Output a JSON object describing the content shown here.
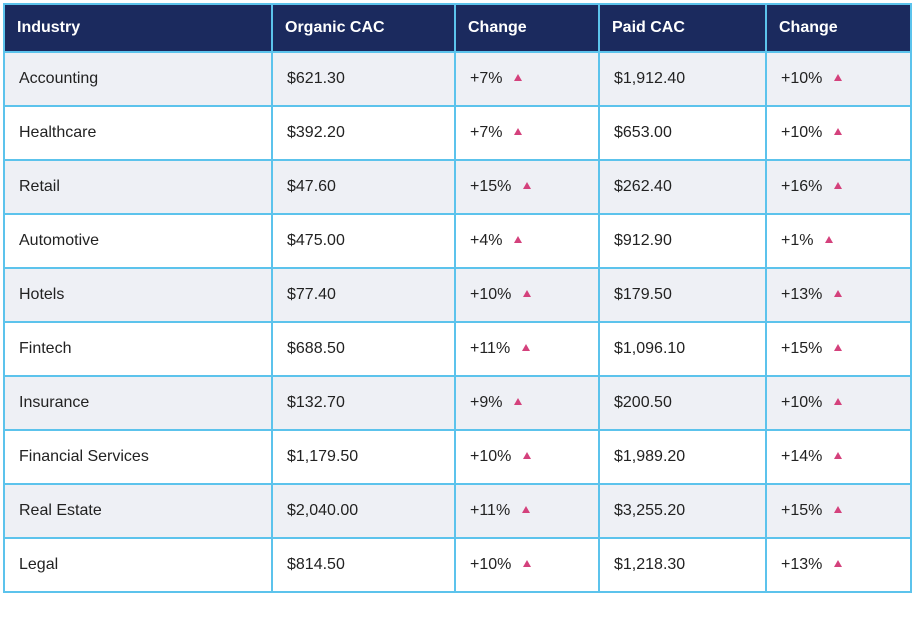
{
  "table": {
    "header": [
      "Industry",
      "Organic CAC",
      "Change",
      "Paid CAC",
      "Change"
    ],
    "rows": [
      [
        "Accounting",
        "$621.30",
        "+7%",
        "$1,912.40",
        "+10%"
      ],
      [
        "Healthcare",
        "$392.20",
        "+7%",
        "$653.00",
        "+10%"
      ],
      [
        "Retail",
        "$47.60",
        "+15%",
        "$262.40",
        "+16%"
      ],
      [
        "Automotive",
        "$475.00",
        "+4%",
        "$912.90",
        "+1%"
      ],
      [
        "Hotels",
        "$77.40",
        "+10%",
        "$179.50",
        "+13%"
      ],
      [
        "Fintech",
        "$688.50",
        "+11%",
        "$1,096.10",
        "+15%"
      ],
      [
        "Insurance",
        "$132.70",
        "+9%",
        "$200.50",
        "+10%"
      ],
      [
        "Financial Services",
        "$1,179.50",
        "+10%",
        "$1,989.20",
        "+14%"
      ],
      [
        "Real Estate",
        "$2,040.00",
        "+11%",
        "$3,255.20",
        "+15%"
      ],
      [
        "Legal",
        "$814.50",
        "+10%",
        "$1,218.30",
        "+13%"
      ]
    ]
  }
}
